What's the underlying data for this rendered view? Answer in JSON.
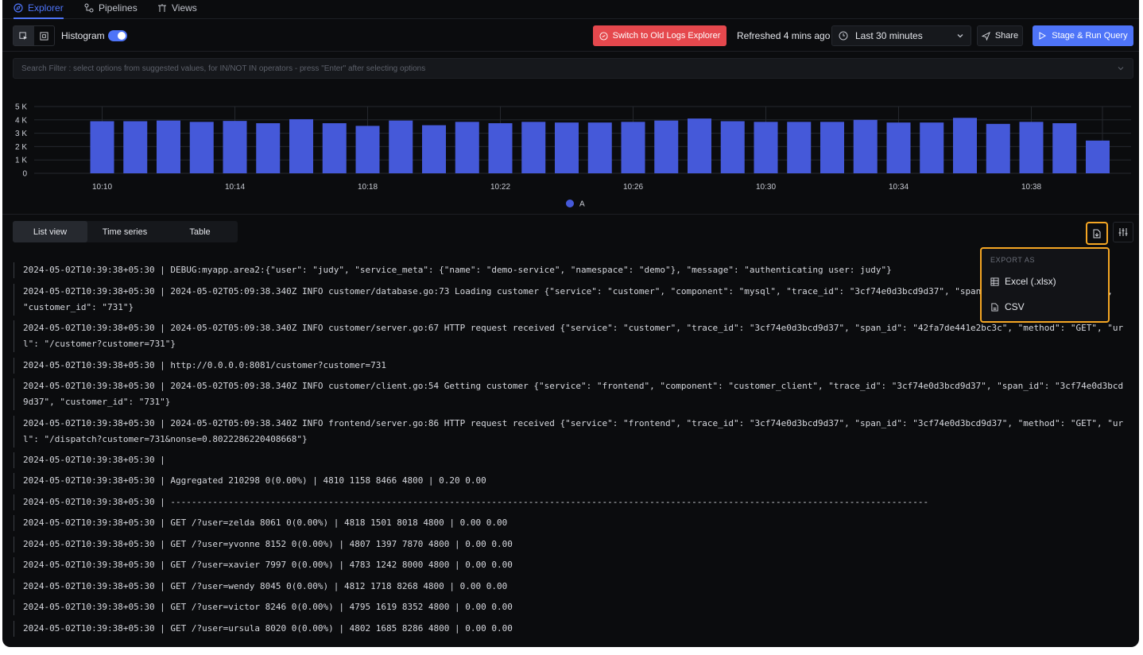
{
  "nav": {
    "tabs": [
      {
        "label": "Explorer",
        "icon": "compass-icon",
        "active": true
      },
      {
        "label": "Pipelines",
        "icon": "pipeline-icon",
        "active": false
      },
      {
        "label": "Views",
        "icon": "views-icon",
        "active": false
      }
    ]
  },
  "toolbar": {
    "histogram_label": "Histogram",
    "histogram_on": true,
    "old_explorer_label": "Switch to Old Logs Explorer",
    "refreshed": "Refreshed 4 mins ago",
    "time_range": "Last 30 minutes",
    "share_label": "Share",
    "run_label": "Stage & Run Query"
  },
  "search": {
    "placeholder": "Search Filter : select options from suggested values, for IN/NOT IN operators - press \"Enter\" after selecting options"
  },
  "chart_data": {
    "type": "bar",
    "y_ticks": [
      "5 K",
      "4 K",
      "3 K",
      "2 K",
      "1 K",
      "0"
    ],
    "ylim": [
      0,
      5000
    ],
    "x_ticks": [
      "10:10",
      "10:14",
      "10:18",
      "10:22",
      "10:26",
      "10:30",
      "10:34",
      "10:38"
    ],
    "values": [
      3900,
      3900,
      3950,
      3850,
      3920,
      3750,
      4050,
      3750,
      3550,
      3950,
      3600,
      3850,
      3750,
      3850,
      3800,
      3800,
      3850,
      3950,
      4100,
      3900,
      3850,
      3850,
      3850,
      4000,
      3800,
      3800,
      4150,
      3700,
      3850,
      3750,
      2450
    ],
    "series": [
      {
        "name": "A",
        "color": "#4559d9"
      }
    ],
    "grid": true,
    "legend": "bottom-center"
  },
  "views": {
    "tabs": [
      "List view",
      "Time series",
      "Table"
    ],
    "active": 0
  },
  "export": {
    "title": "EXPORT AS",
    "options": [
      {
        "label": "Excel (.xlsx)",
        "icon": "table-icon"
      },
      {
        "label": "CSV",
        "icon": "csv-file-icon"
      }
    ]
  },
  "logs": [
    "2024-05-02T10:39:38+05:30 | DEBUG:myapp.area2:{\"user\": \"judy\", \"service_meta\": {\"name\": \"demo-service\", \"namespace\": \"demo\"}, \"message\": \"authenticating user: judy\"}",
    "2024-05-02T10:39:38+05:30 | 2024-05-02T05:09:38.340Z INFO customer/database.go:73 Loading customer {\"service\": \"customer\", \"component\": \"mysql\", \"trace_id\": \"3cf74e0d3bcd9d37\", \"span_id\": \"3cf74e0d3bcd9d37\", \"customer_id\": \"731\"}",
    "2024-05-02T10:39:38+05:30 | 2024-05-02T05:09:38.340Z INFO customer/server.go:67 HTTP request received {\"service\": \"customer\", \"trace_id\": \"3cf74e0d3bcd9d37\", \"span_id\": \"42fa7de441e2bc3c\", \"method\": \"GET\", \"url\": \"/customer?customer=731\"}",
    "2024-05-02T10:39:38+05:30 | http://0.0.0.0:8081/customer?customer=731",
    "2024-05-02T10:39:38+05:30 | 2024-05-02T05:09:38.340Z INFO customer/client.go:54 Getting customer {\"service\": \"frontend\", \"component\": \"customer_client\", \"trace_id\": \"3cf74e0d3bcd9d37\", \"span_id\": \"3cf74e0d3bcd9d37\", \"customer_id\": \"731\"}",
    "2024-05-02T10:39:38+05:30 | 2024-05-02T05:09:38.340Z INFO frontend/server.go:86 HTTP request received {\"service\": \"frontend\", \"trace_id\": \"3cf74e0d3bcd9d37\", \"span_id\": \"3cf74e0d3bcd9d37\", \"method\": \"GET\", \"url\": \"/dispatch?customer=731&nonse=0.8022286220408668\"}",
    "2024-05-02T10:39:38+05:30 |",
    "2024-05-02T10:39:38+05:30 | Aggregated 210298 0(0.00%) | 4810 1158 8466 4800 | 0.20 0.00",
    "2024-05-02T10:39:38+05:30 | ------------------------------------------------------------------------------------------------------------------------------------------------",
    "2024-05-02T10:39:38+05:30 | GET /?user=zelda 8061 0(0.00%) | 4818 1501 8018 4800 | 0.00 0.00",
    "2024-05-02T10:39:38+05:30 | GET /?user=yvonne 8152 0(0.00%) | 4807 1397 7870 4800 | 0.00 0.00",
    "2024-05-02T10:39:38+05:30 | GET /?user=xavier 7997 0(0.00%) | 4783 1242 8000 4800 | 0.00 0.00",
    "2024-05-02T10:39:38+05:30 | GET /?user=wendy 8045 0(0.00%) | 4812 1718 8268 4800 | 0.00 0.00",
    "2024-05-02T10:39:38+05:30 | GET /?user=victor 8246 0(0.00%) | 4795 1619 8352 4800 | 0.00 0.00",
    "2024-05-02T10:39:38+05:30 | GET /?user=ursula 8020 0(0.00%) | 4802 1685 8286 4800 | 0.00 0.00"
  ]
}
